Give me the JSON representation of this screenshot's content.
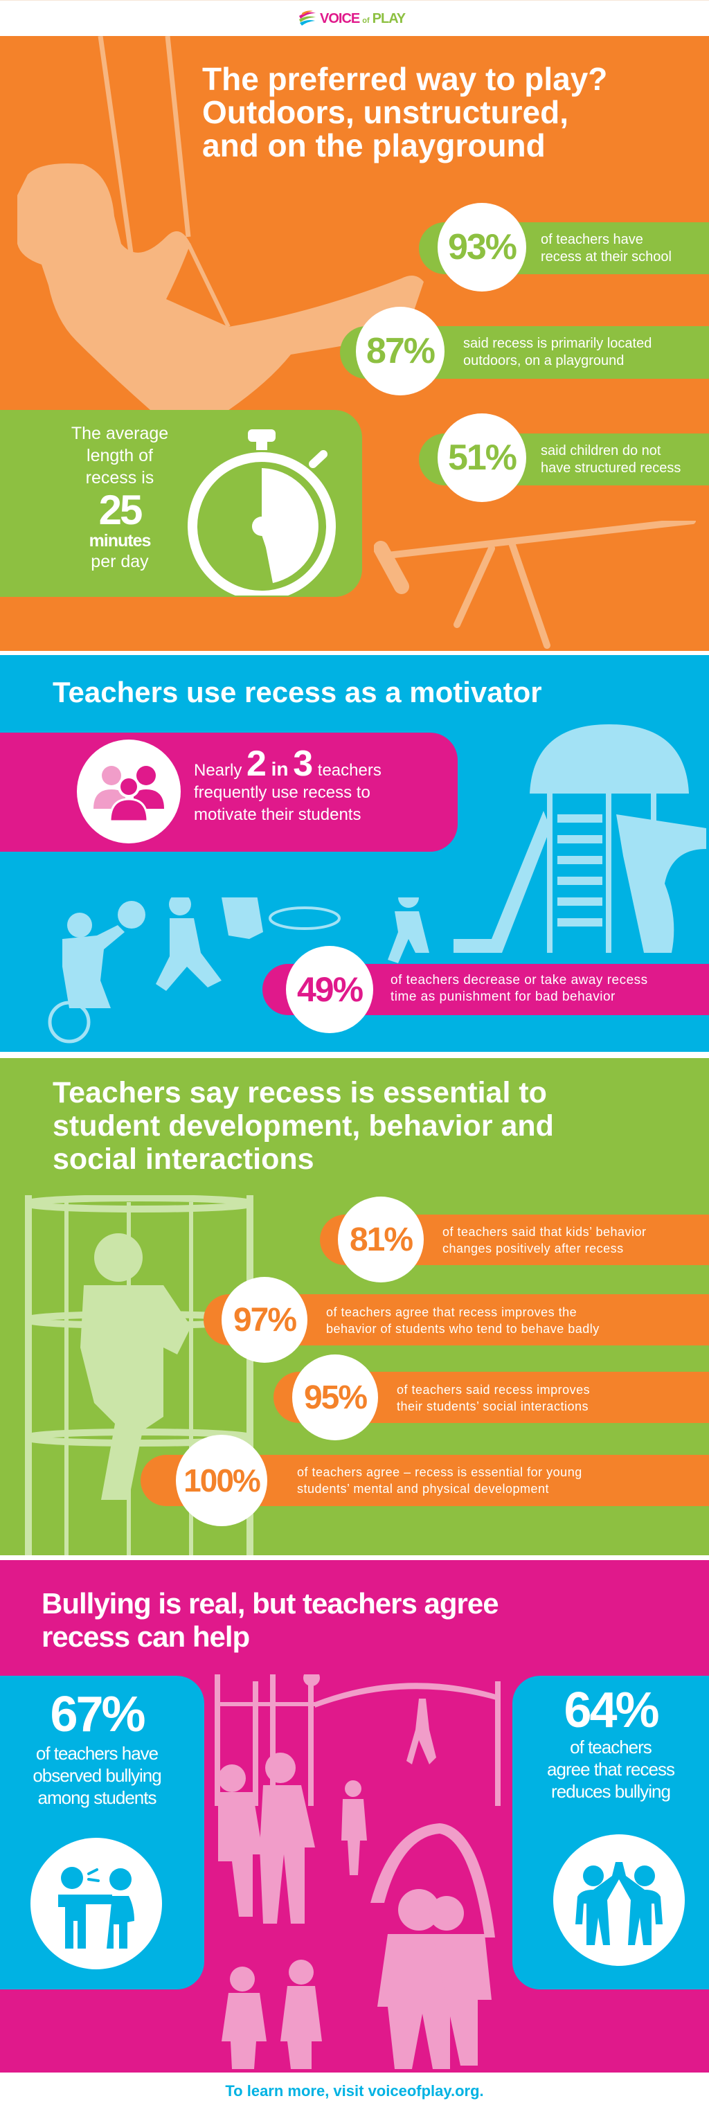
{
  "header": {
    "logo_text": "VOICE of PLAY",
    "logo_parts": [
      "VOICE",
      "of",
      "PLAY"
    ]
  },
  "colors": {
    "orange": "#f4822a",
    "green": "#8dc041",
    "blue": "#00b2e3",
    "pink": "#e0198b",
    "peach": "#f7b680",
    "light_blue": "#a3e2f5",
    "light_green": "#cbe5a8",
    "light_pink": "#f19dc9"
  },
  "section1": {
    "title": [
      "The preferred way to play?",
      "Outdoors, unstructured,",
      "and on the playground"
    ],
    "stats": [
      {
        "value": "93%",
        "text": [
          "of teachers have",
          "recess at their school"
        ]
      },
      {
        "value": "87%",
        "text": [
          "said recess is primarily located",
          "outdoors, on a playground"
        ]
      },
      {
        "value": "51%",
        "text": [
          "said children do not",
          "have structured recess"
        ]
      }
    ],
    "recess_length": {
      "intro": [
        "The average",
        "length of",
        "recess is"
      ],
      "value": "25",
      "unit": "minutes",
      "suffix": "per day",
      "icon": "stopwatch-icon"
    }
  },
  "section2": {
    "title": "Teachers use recess as a motivator",
    "callout": {
      "pre": "Nearly",
      "num1": "2",
      "mid": "in",
      "num2": "3",
      "post": "teachers",
      "lines": [
        "frequently use recess to",
        "motivate their students"
      ],
      "icon": "group-of-people-icon"
    },
    "stat": {
      "value": "49%",
      "text": [
        "of teachers decrease or take away recess",
        "time as punishment for bad behavior"
      ]
    }
  },
  "section3": {
    "title": [
      "Teachers say recess is essential to",
      "student development, behavior and",
      "social interactions"
    ],
    "stats": [
      {
        "value": "81%",
        "text": [
          "of teachers said that kids’ behavior",
          "changes positively after recess"
        ]
      },
      {
        "value": "97%",
        "text": [
          "of teachers agree that recess improves the",
          "behavior of students who tend to behave badly"
        ]
      },
      {
        "value": "95%",
        "text": [
          "of teachers said recess improves",
          "their students’ social interactions"
        ]
      },
      {
        "value": "100%",
        "text": [
          "of teachers agree – recess is essential for young",
          "students’ mental and physical development"
        ]
      }
    ]
  },
  "section4": {
    "title": [
      "Bullying is real, but teachers agree",
      "recess can help"
    ],
    "left": {
      "value": "67%",
      "text": [
        "of teachers have",
        "observed bullying",
        "among students"
      ],
      "icon": "bullying-icon"
    },
    "right": {
      "value": "64%",
      "text": [
        "of teachers",
        "agree that recess",
        "reduces bullying"
      ],
      "icon": "friends-high-five-icon"
    }
  },
  "footer": {
    "text": "To learn more, visit voiceofplay.org."
  }
}
